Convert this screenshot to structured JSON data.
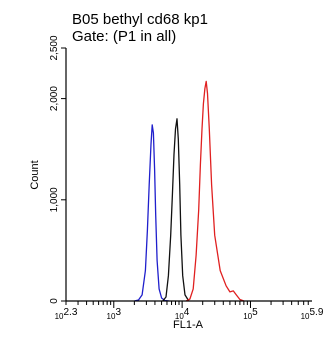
{
  "chart_data": {
    "type": "line",
    "title": "B05 bethyl cd68 kp1",
    "subtitle": "Gate: (P1 in all)",
    "xlabel": "FL1-A",
    "ylabel": "Count",
    "x_scale": "log",
    "xlim": [
      200,
      794328
    ],
    "ylim": [
      0,
      2500
    ],
    "x_ticks": [
      {
        "base": "10",
        "exp": "2.3",
        "value": 200
      },
      {
        "base": "10",
        "exp": "3",
        "value": 1000
      },
      {
        "base": "10",
        "exp": "4",
        "value": 10000
      },
      {
        "base": "10",
        "exp": "5",
        "value": 100000
      },
      {
        "base": "10",
        "exp": "5.9",
        "value": 794328
      }
    ],
    "y_ticks": [
      {
        "label": "0",
        "value": 0
      },
      {
        "label": "1,000",
        "value": 1000
      },
      {
        "label": "2,000",
        "value": 2000
      },
      {
        "label": "2,500",
        "value": 2500
      }
    ],
    "series": [
      {
        "color": "#1f1fcc",
        "x": [
          2000,
          2300,
          2600,
          2900,
          3100,
          3300,
          3500,
          3650,
          3800,
          3950,
          4100,
          4300,
          4600,
          5000,
          5600,
          6500
        ],
        "y": [
          0,
          10,
          60,
          300,
          700,
          1150,
          1550,
          1740,
          1660,
          1300,
          850,
          400,
          120,
          30,
          5,
          0
        ]
      },
      {
        "color": "#111111",
        "x": [
          5200,
          5800,
          6300,
          6800,
          7200,
          7600,
          8000,
          8400,
          8800,
          9200,
          9600,
          10200,
          11000,
          12500
        ],
        "y": [
          0,
          40,
          250,
          650,
          1050,
          1450,
          1700,
          1800,
          1600,
          1150,
          650,
          250,
          60,
          0
        ]
      },
      {
        "color": "#e02020",
        "x": [
          11500,
          13000,
          14500,
          16000,
          17500,
          18500,
          19500,
          20500,
          21500,
          22500,
          23500,
          25000,
          27000,
          30000,
          36000,
          44000,
          50000,
          56000,
          62000,
          70000,
          80000
        ],
        "y": [
          0,
          20,
          120,
          450,
          900,
          1350,
          1700,
          1950,
          2100,
          2170,
          2050,
          1700,
          1150,
          650,
          300,
          150,
          90,
          100,
          60,
          15,
          0
        ]
      }
    ]
  }
}
